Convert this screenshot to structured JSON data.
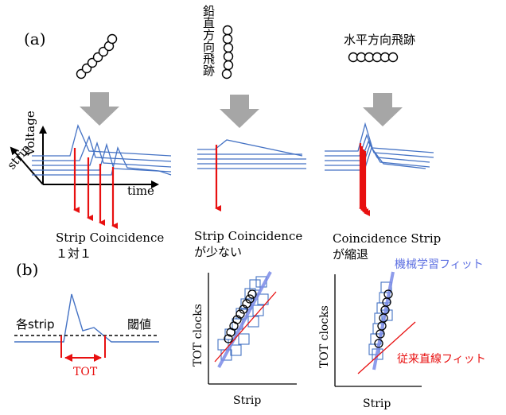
{
  "labels": {
    "panel_a": "(a)",
    "panel_b": "(b)",
    "vertical_track": "鉛直方向飛跡",
    "horizontal_track": "水平方向飛跡",
    "voltage": "Voltage",
    "strip": "strip",
    "time": "time",
    "caption1_line1": "Strip Coincidence",
    "caption1_line2": "１対１",
    "caption2_line1": "Strip Coincidence",
    "caption2_line2": "が少ない",
    "caption3_line1": "Coincidence Strip",
    "caption3_line2": "が縮退",
    "each_strip": "各strip",
    "threshold": "閾値",
    "tot": "TOT",
    "tot_clocks_left": "TOT clocks",
    "strip_left": "Strip",
    "tot_clocks_right": "TOT clocks",
    "strip_right": "Strip",
    "ml_fit": "機械学習フィット",
    "linear_fit": "従来直線フィット"
  },
  "colors": {
    "signal": "#4472c4",
    "hit": "#e81010",
    "arrow": "#a6a6a6",
    "ml_fit": "#5b6ee1",
    "linear_fit": "#e81010"
  }
}
